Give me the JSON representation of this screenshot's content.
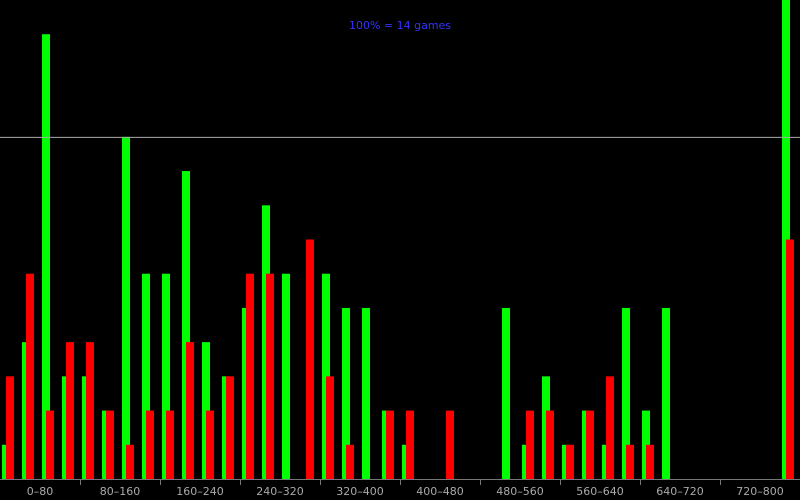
{
  "chart_data": {
    "type": "bar",
    "annotation": "100% = 14 games",
    "reference_line_value": 100,
    "ylim": [
      0,
      140
    ],
    "grid": false,
    "x_tick_labels": [
      "0–80",
      "80–160",
      "160–240",
      "240–320",
      "320–400",
      "400–480",
      "480–560",
      "560–640",
      "640–720",
      "720–800"
    ],
    "bins_per_group": 4,
    "series": [
      {
        "color": "#00ff00",
        "values": [
          10,
          40,
          130,
          30,
          30,
          20,
          100,
          60,
          60,
          90,
          40,
          30,
          50,
          80,
          60,
          0,
          60,
          50,
          50,
          20,
          10,
          0,
          0,
          0,
          0,
          50,
          10,
          30,
          10,
          20,
          10,
          50,
          20,
          50,
          0,
          0,
          0,
          0,
          0,
          140
        ]
      },
      {
        "color": "#ff0000",
        "values": [
          30,
          60,
          20,
          40,
          40,
          20,
          10,
          20,
          20,
          40,
          20,
          30,
          60,
          60,
          0,
          70,
          30,
          10,
          0,
          20,
          20,
          0,
          20,
          0,
          0,
          0,
          20,
          20,
          10,
          20,
          30,
          10,
          10,
          0,
          0,
          0,
          0,
          0,
          0,
          70
        ]
      }
    ]
  },
  "colors": {
    "background": "#000000",
    "annotation": "#3333ff",
    "reference_line": "#aaaaaa",
    "axis": "#777777",
    "tick_text": "#aaaaaa"
  }
}
